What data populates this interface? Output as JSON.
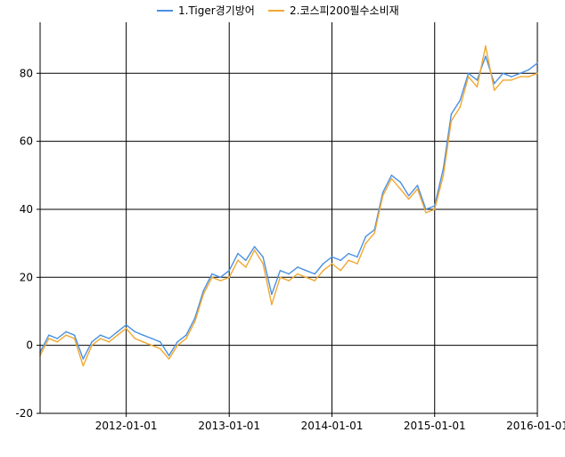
{
  "chart_data": {
    "type": "line",
    "title": "",
    "xlabel": "",
    "ylabel": "",
    "xlim": [
      "2011-03-01",
      "2016-01-01"
    ],
    "ylim": [
      -20,
      95
    ],
    "x_ticks": [
      "2012-01-01",
      "2013-01-01",
      "2014-01-01",
      "2015-01-01",
      "2016-01-01"
    ],
    "y_ticks": [
      -20,
      0,
      20,
      40,
      60,
      80
    ],
    "grid": true,
    "legend_position": "top",
    "series": [
      {
        "name": "1.Tiger경기방어",
        "color": "#4a90e2",
        "x": [
          "2011-03-01",
          "2011-04-01",
          "2011-05-01",
          "2011-06-01",
          "2011-07-01",
          "2011-08-01",
          "2011-09-01",
          "2011-10-01",
          "2011-11-01",
          "2011-12-01",
          "2012-01-01",
          "2012-02-01",
          "2012-03-01",
          "2012-04-01",
          "2012-05-01",
          "2012-06-01",
          "2012-07-01",
          "2012-08-01",
          "2012-09-01",
          "2012-10-01",
          "2012-11-01",
          "2012-12-01",
          "2013-01-01",
          "2013-02-01",
          "2013-03-01",
          "2013-04-01",
          "2013-05-01",
          "2013-06-01",
          "2013-07-01",
          "2013-08-01",
          "2013-09-01",
          "2013-10-01",
          "2013-11-01",
          "2013-12-01",
          "2014-01-01",
          "2014-02-01",
          "2014-03-01",
          "2014-04-01",
          "2014-05-01",
          "2014-06-01",
          "2014-07-01",
          "2014-08-01",
          "2014-09-01",
          "2014-10-01",
          "2014-11-01",
          "2014-12-01",
          "2015-01-01",
          "2015-02-01",
          "2015-03-01",
          "2015-04-01",
          "2015-05-01",
          "2015-06-01",
          "2015-07-01",
          "2015-08-01",
          "2015-09-01",
          "2015-10-01",
          "2015-11-01",
          "2015-12-01",
          "2016-01-01"
        ],
        "values": [
          -2,
          3,
          2,
          4,
          3,
          -4,
          1,
          3,
          2,
          4,
          6,
          4,
          3,
          2,
          1,
          -3,
          1,
          3,
          8,
          16,
          21,
          20,
          22,
          27,
          25,
          29,
          26,
          15,
          22,
          21,
          23,
          22,
          21,
          24,
          26,
          25,
          27,
          26,
          32,
          34,
          45,
          50,
          48,
          44,
          47,
          40,
          41,
          52,
          68,
          72,
          80,
          78,
          85,
          77,
          80,
          79,
          80,
          81,
          83
        ]
      },
      {
        "name": "2.코스피200필수소비재",
        "color": "#f0a830",
        "x": [
          "2011-03-01",
          "2011-04-01",
          "2011-05-01",
          "2011-06-01",
          "2011-07-01",
          "2011-08-01",
          "2011-09-01",
          "2011-10-01",
          "2011-11-01",
          "2011-12-01",
          "2012-01-01",
          "2012-02-01",
          "2012-03-01",
          "2012-04-01",
          "2012-05-01",
          "2012-06-01",
          "2012-07-01",
          "2012-08-01",
          "2012-09-01",
          "2012-10-01",
          "2012-11-01",
          "2012-12-01",
          "2013-01-01",
          "2013-02-01",
          "2013-03-01",
          "2013-04-01",
          "2013-05-01",
          "2013-06-01",
          "2013-07-01",
          "2013-08-01",
          "2013-09-01",
          "2013-10-01",
          "2013-11-01",
          "2013-12-01",
          "2014-01-01",
          "2014-02-01",
          "2014-03-01",
          "2014-04-01",
          "2014-05-01",
          "2014-06-01",
          "2014-07-01",
          "2014-08-01",
          "2014-09-01",
          "2014-10-01",
          "2014-11-01",
          "2014-12-01",
          "2015-01-01",
          "2015-02-01",
          "2015-03-01",
          "2015-04-01",
          "2015-05-01",
          "2015-06-01",
          "2015-07-01",
          "2015-08-01",
          "2015-09-01",
          "2015-10-01",
          "2015-11-01",
          "2015-12-01",
          "2016-01-01"
        ],
        "values": [
          -3,
          2,
          1,
          3,
          2,
          -6,
          0,
          2,
          1,
          3,
          5,
          2,
          1,
          0,
          -1,
          -4,
          0,
          2,
          7,
          15,
          20,
          19,
          20,
          25,
          23,
          28,
          24,
          12,
          20,
          19,
          21,
          20,
          19,
          22,
          24,
          22,
          25,
          24,
          30,
          33,
          44,
          49,
          46,
          43,
          46,
          39,
          40,
          50,
          66,
          70,
          79,
          76,
          88,
          75,
          78,
          78,
          79,
          79,
          80
        ]
      }
    ]
  }
}
